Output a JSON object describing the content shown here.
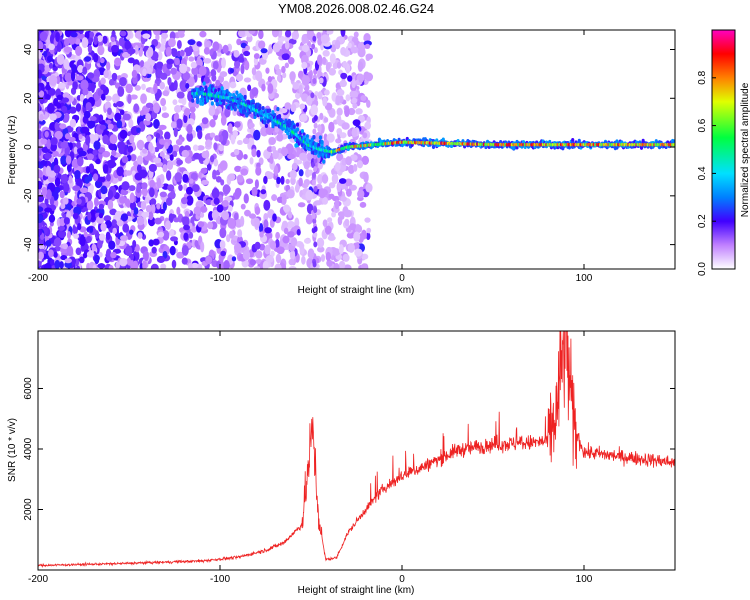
{
  "title": "YM08.2026.008.02.46.G24",
  "chart_data": [
    {
      "type": "heatmap",
      "xlabel": "Height of straight line (km)",
      "ylabel": "Frequency (Hz)",
      "xlim": [
        -200,
        150
      ],
      "ylim": [
        -50,
        48
      ],
      "xticks": [
        -200,
        -100,
        0,
        100
      ],
      "yticks": [
        -40,
        -20,
        0,
        20,
        40
      ],
      "colorbar": {
        "label": "Normalized spectral amplitude",
        "ticks": [
          0.0,
          0.2,
          0.4,
          0.6,
          0.8
        ],
        "range": [
          0,
          1
        ]
      },
      "ridge": [
        {
          "x": -110,
          "y": 22
        },
        {
          "x": -95,
          "y": 20
        },
        {
          "x": -85,
          "y": 17
        },
        {
          "x": -75,
          "y": 13
        },
        {
          "x": -65,
          "y": 9
        },
        {
          "x": -58,
          "y": 5
        },
        {
          "x": -52,
          "y": 1
        },
        {
          "x": -45,
          "y": -1
        },
        {
          "x": -38,
          "y": -2
        },
        {
          "x": -30,
          "y": 0
        },
        {
          "x": -15,
          "y": 1
        },
        {
          "x": 0,
          "y": 2
        },
        {
          "x": 50,
          "y": 1
        },
        {
          "x": 100,
          "y": 1
        },
        {
          "x": 150,
          "y": 1
        }
      ]
    },
    {
      "type": "line",
      "xlabel": "Height of straight line (km)",
      "ylabel": "SNR (10 * v/v)",
      "xlim": [
        -200,
        150
      ],
      "ylim": [
        0,
        7900
      ],
      "xticks": [
        -200,
        -100,
        0,
        100
      ],
      "yticks": [
        2000,
        4000,
        6000
      ],
      "color": "#ee2222",
      "envelope": [
        {
          "x": -200,
          "y": 150
        },
        {
          "x": -150,
          "y": 220
        },
        {
          "x": -110,
          "y": 300
        },
        {
          "x": -90,
          "y": 420
        },
        {
          "x": -75,
          "y": 650
        },
        {
          "x": -65,
          "y": 900
        },
        {
          "x": -55,
          "y": 1500
        },
        {
          "x": -49,
          "y": 4700
        },
        {
          "x": -46,
          "y": 1800
        },
        {
          "x": -42,
          "y": 350
        },
        {
          "x": -36,
          "y": 400
        },
        {
          "x": -30,
          "y": 1200
        },
        {
          "x": -20,
          "y": 2000
        },
        {
          "x": -10,
          "y": 2700
        },
        {
          "x": 0,
          "y": 3100
        },
        {
          "x": 15,
          "y": 3500
        },
        {
          "x": 30,
          "y": 3950
        },
        {
          "x": 50,
          "y": 4150
        },
        {
          "x": 70,
          "y": 4200
        },
        {
          "x": 80,
          "y": 4250
        },
        {
          "x": 85,
          "y": 5200
        },
        {
          "x": 88,
          "y": 6900
        },
        {
          "x": 90,
          "y": 7800
        },
        {
          "x": 94,
          "y": 4800
        },
        {
          "x": 100,
          "y": 3900
        },
        {
          "x": 120,
          "y": 3750
        },
        {
          "x": 150,
          "y": 3550
        }
      ]
    }
  ]
}
